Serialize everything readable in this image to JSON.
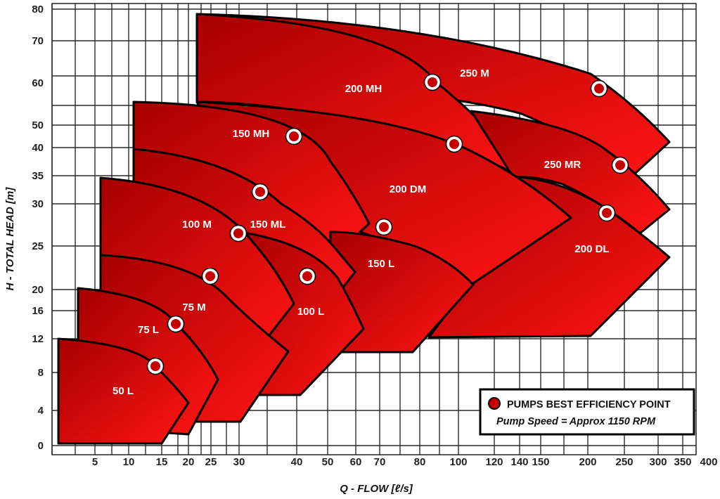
{
  "chart_data": {
    "type": "area",
    "title": "",
    "xlabel": "Q - FLOW [ℓ/s]",
    "ylabel": "H - TOTAL HEAD [m]",
    "x_ticks": [
      "5",
      "10",
      "15",
      "20",
      "25",
      "30",
      "40",
      "50",
      "60",
      "70",
      "80",
      "100",
      "120",
      "140",
      "150",
      "200",
      "250",
      "300",
      "350",
      "400"
    ],
    "y_ticks": [
      "0",
      "4",
      "8",
      "12",
      "16",
      "20",
      "25",
      "30",
      "35",
      "40",
      "50",
      "60",
      "70",
      "80"
    ],
    "grid": true,
    "pump_ranges": [
      {
        "name": "50 L",
        "label": "50 L"
      },
      {
        "name": "75 L",
        "label": "75 L"
      },
      {
        "name": "75 M",
        "label": "75 M"
      },
      {
        "name": "100 M",
        "label": "100 M"
      },
      {
        "name": "100 L",
        "label": "100 L"
      },
      {
        "name": "150 ML",
        "label": "150 ML"
      },
      {
        "name": "150 MH",
        "label": "150 MH"
      },
      {
        "name": "150 L",
        "label": "150 L"
      },
      {
        "name": "200 DM",
        "label": "200 DM"
      },
      {
        "name": "200 DL",
        "label": "200 DL"
      },
      {
        "name": "200 MH",
        "label": "200 MH"
      },
      {
        "name": "250 MR",
        "label": "250 MR"
      },
      {
        "name": "250 M",
        "label": "250 M"
      }
    ],
    "best_efficiency_points": [
      {
        "pump": "50 L",
        "q": 14,
        "h": 8.5
      },
      {
        "pump": "75 L",
        "q": 17,
        "h": 13.5
      },
      {
        "pump": "75 M",
        "q": 24,
        "h": 21
      },
      {
        "pump": "100 M",
        "q": 28,
        "h": 26
      },
      {
        "pump": "100 L",
        "q": 44,
        "h": 21
      },
      {
        "pump": "150 ML",
        "q": 30,
        "h": 31.5
      },
      {
        "pump": "150 MH",
        "q": 39,
        "h": 42
      },
      {
        "pump": "150 L",
        "q": 71,
        "h": 26.5
      },
      {
        "pump": "200 DM",
        "q": 97,
        "h": 40
      },
      {
        "pump": "200 DL",
        "q": 220,
        "h": 28.5
      },
      {
        "pump": "200 MH",
        "q": 82,
        "h": 59
      },
      {
        "pump": "250 MR",
        "q": 240,
        "h": 36
      },
      {
        "pump": "250 M",
        "q": 205,
        "h": 57
      }
    ],
    "legend": {
      "position": "bottom-right",
      "marker_label": "PUMPS BEST EFFICIENCY POINT",
      "note": "Pump Speed =  Approx  1150 RPM"
    },
    "colors": {
      "fill_dark": "#a80000",
      "fill_light": "#ff1010",
      "outline": "#000000",
      "marker_fill": "#c40000",
      "marker_ring": "#ffffff",
      "grid": "#2a2a2a"
    }
  }
}
